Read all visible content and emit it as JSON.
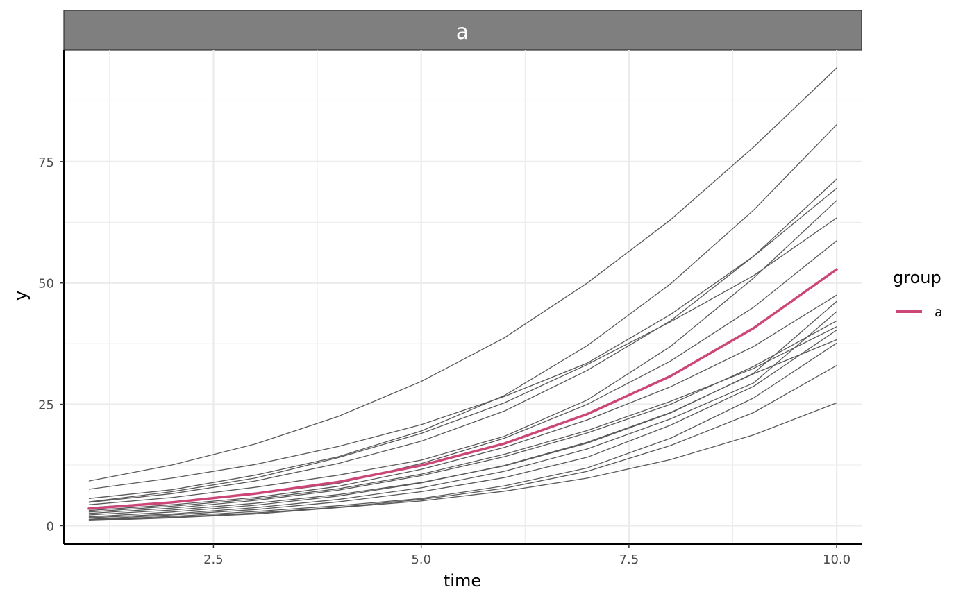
{
  "chart_data": {
    "type": "line",
    "facet_label": "a",
    "xlabel": "time",
    "ylabel": "y",
    "xlim": [
      0.7,
      10.3
    ],
    "ylim": [
      -3.8,
      98
    ],
    "x_ticks": [
      2.5,
      5.0,
      7.5,
      10.0
    ],
    "x_tick_labels": [
      "2.5",
      "5.0",
      "7.5",
      "10.0"
    ],
    "y_ticks": [
      0,
      25,
      50,
      75
    ],
    "y_tick_labels": [
      "0",
      "25",
      "50",
      "75"
    ],
    "x_minor_ticks": [
      1.25,
      3.75,
      6.25,
      8.75
    ],
    "y_minor_ticks": [
      12.5,
      37.5,
      62.5,
      87.5
    ],
    "grid": true,
    "legend": {
      "title": "group",
      "position": "right",
      "entries": [
        {
          "label": "a",
          "color": "#cc4778"
        }
      ]
    },
    "x": [
      1,
      2,
      3,
      4,
      5,
      6,
      7,
      8,
      9,
      10
    ],
    "background_series": [
      [
        9.2,
        12.5,
        16.8,
        22.5,
        29.7,
        38.7,
        50.0,
        63.0,
        78.0,
        94.3
      ],
      [
        7.5,
        9.8,
        12.6,
        16.3,
        20.8,
        26.6,
        33.5,
        43.5,
        55.5,
        71.4
      ],
      [
        5.6,
        7.4,
        10.4,
        14.2,
        19.5,
        26.8,
        37.1,
        49.8,
        65.0,
        82.6
      ],
      [
        4.9,
        7.0,
        9.8,
        14.0,
        19.0,
        25.3,
        33.2,
        42.0,
        51.5,
        63.4
      ],
      [
        4.8,
        6.6,
        9.2,
        12.8,
        17.4,
        23.6,
        32.0,
        42.2,
        55.5,
        69.5
      ],
      [
        4.3,
        5.8,
        7.9,
        10.4,
        13.5,
        18.4,
        25.9,
        36.9,
        51.0,
        67.0
      ],
      [
        3.7,
        4.9,
        6.5,
        8.7,
        12.8,
        18.0,
        25.0,
        33.9,
        45.0,
        58.7
      ],
      [
        3.1,
        4.3,
        5.8,
        8.1,
        11.6,
        16.1,
        21.8,
        28.6,
        36.9,
        47.5
      ],
      [
        2.8,
        4.0,
        5.5,
        7.6,
        10.6,
        14.7,
        19.6,
        25.6,
        32.4,
        41.0
      ],
      [
        2.5,
        3.6,
        5.2,
        7.3,
        10.3,
        14.2,
        19.1,
        25.0,
        32.8,
        42.2
      ],
      [
        2.2,
        3.2,
        4.6,
        6.4,
        8.9,
        12.3,
        17.0,
        23.2,
        31.4,
        46.2
      ],
      [
        1.8,
        2.8,
        4.2,
        6.1,
        8.8,
        12.4,
        17.2,
        23.3,
        31.3,
        38.3
      ],
      [
        1.6,
        2.4,
        3.7,
        5.4,
        7.8,
        11.2,
        15.8,
        22.0,
        29.4,
        44.1
      ],
      [
        1.3,
        2.2,
        3.3,
        4.9,
        7.0,
        9.9,
        14.1,
        20.7,
        28.7,
        40.3
      ],
      [
        1.2,
        1.9,
        2.9,
        4.1,
        5.6,
        8.2,
        11.9,
        18.0,
        26.3,
        37.6
      ],
      [
        1.1,
        1.7,
        2.6,
        3.8,
        5.4,
        7.7,
        11.2,
        16.5,
        23.3,
        33.0
      ],
      [
        1.0,
        1.6,
        2.4,
        3.7,
        5.1,
        7.1,
        9.8,
        13.6,
        18.7,
        25.3
      ]
    ],
    "series": [
      {
        "name": "a",
        "color": "#cc4778",
        "values": [
          3.5,
          4.8,
          6.6,
          9.0,
          12.4,
          16.9,
          23.0,
          30.8,
          40.7,
          52.8
        ]
      }
    ]
  }
}
